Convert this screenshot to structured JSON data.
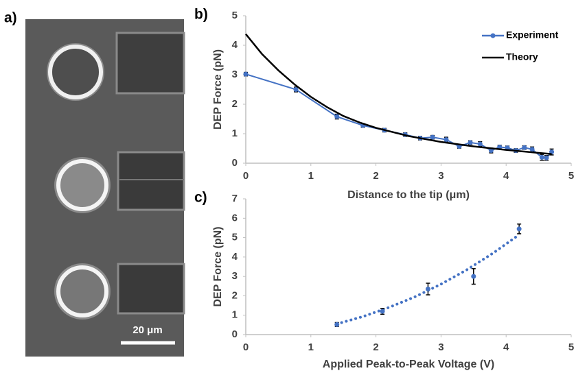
{
  "image_panel": {
    "label": "a)",
    "scale_bar": "20 μm"
  },
  "chart_data": [
    {
      "type": "line",
      "label": "b)",
      "x_label": "Distance to the tip (μm)",
      "y_label": "DEP Force (pN)",
      "xlim": [
        0,
        5
      ],
      "ylim": [
        0,
        5
      ],
      "xticks": [
        0,
        1,
        2,
        3,
        4,
        5
      ],
      "yticks": [
        0,
        1,
        2,
        3,
        4,
        5
      ],
      "legend": "upper right",
      "series": [
        {
          "name": "Experiment",
          "color": "#4472c4",
          "marker": true,
          "x": [
            0,
            0.77,
            1.4,
            1.8,
            2.13,
            2.45,
            2.68,
            2.87,
            3.08,
            3.28,
            3.45,
            3.6,
            3.77,
            3.9,
            4.02,
            4.15,
            4.28,
            4.4,
            4.55,
            4.62,
            4.7
          ],
          "values": [
            3.02,
            2.5,
            1.58,
            1.28,
            1.12,
            0.97,
            0.85,
            0.88,
            0.8,
            0.57,
            0.7,
            0.65,
            0.43,
            0.55,
            0.52,
            0.43,
            0.53,
            0.47,
            0.2,
            0.18,
            0.38
          ],
          "errors": [
            0.06,
            0.08,
            0.08,
            0.06,
            0.06,
            0.06,
            0.06,
            0.06,
            0.08,
            0.06,
            0.06,
            0.08,
            0.08,
            0.06,
            0.06,
            0.06,
            0.06,
            0.08,
            0.1,
            0.08,
            0.1
          ]
        },
        {
          "name": "Theory",
          "color": "#000000",
          "marker": false,
          "x": [
            0,
            0.25,
            0.5,
            0.75,
            1,
            1.25,
            1.5,
            1.75,
            2,
            2.5,
            3,
            3.5,
            4,
            4.5,
            4.7
          ],
          "values": [
            4.38,
            3.7,
            3.15,
            2.67,
            2.25,
            1.9,
            1.6,
            1.38,
            1.2,
            0.92,
            0.72,
            0.57,
            0.45,
            0.35,
            0.31
          ]
        }
      ]
    },
    {
      "type": "scatter",
      "label": "c)",
      "x_label": "Applied Peak-to-Peak Voltage (V)",
      "y_label": "DEP Force (pN)",
      "xlim": [
        0,
        5
      ],
      "ylim": [
        0,
        7
      ],
      "xticks": [
        0,
        1,
        2,
        3,
        4,
        5
      ],
      "yticks": [
        0,
        1,
        2,
        3,
        4,
        5,
        6,
        7
      ],
      "series": [
        {
          "color": "#4472c4",
          "marker": true,
          "x": [
            1.4,
            2.1,
            2.8,
            3.5,
            4.2
          ],
          "values": [
            0.52,
            1.2,
            2.35,
            3.0,
            5.45
          ],
          "errors": [
            0.1,
            0.15,
            0.3,
            0.4,
            0.25
          ]
        }
      ],
      "trendline": {
        "color": "#4472c4",
        "x": [
          1.4,
          1.8,
          2.2,
          2.6,
          3.0,
          3.4,
          3.8,
          4.2
        ],
        "values": [
          0.55,
          0.93,
          1.4,
          1.95,
          2.6,
          3.35,
          4.2,
          5.15
        ]
      }
    }
  ]
}
